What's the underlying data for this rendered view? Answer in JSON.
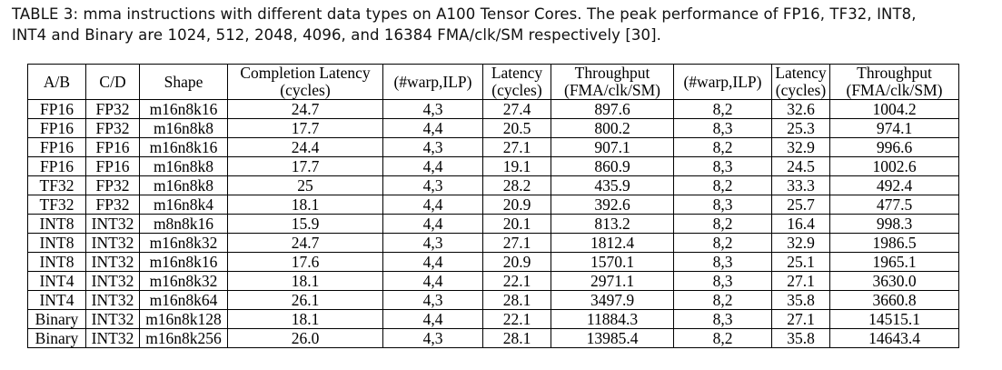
{
  "caption": {
    "line1": "TABLE 3: mma instructions with different data types on A100 Tensor Cores. The peak performance of FP16, TF32, INT8,",
    "line2": "INT4 and Binary are 1024, 512, 2048, 4096, and 16384 FMA/clk/SM respectively [30]."
  },
  "table": {
    "headers": {
      "ab": "A/B",
      "cd": "C/D",
      "shape": "Shape",
      "completion_latency_1": "Completion Latency",
      "completion_latency_2": "(cycles)",
      "warp_ilp_a": "(#warp,ILP)",
      "latency_a_1": "Latency",
      "latency_a_2": "(cycles)",
      "throughput_a_1": "Throughput",
      "throughput_a_2": "(FMA/clk/SM)",
      "warp_ilp_b": "(#warp,ILP)",
      "latency_b_1": "Latency",
      "latency_b_2": "(cycles)",
      "throughput_b_1": "Throughput",
      "throughput_b_2": "(FMA/clk/SM)"
    },
    "rows": [
      [
        "FP16",
        "FP32",
        "m16n8k16",
        "24.7",
        "4,3",
        "27.4",
        "897.6",
        "8,2",
        "32.6",
        "1004.2"
      ],
      [
        "FP16",
        "FP32",
        "m16n8k8",
        "17.7",
        "4,4",
        "20.5",
        "800.2",
        "8,3",
        "25.3",
        "974.1"
      ],
      [
        "FP16",
        "FP16",
        "m16n8k16",
        "24.4",
        "4,3",
        "27.1",
        "907.1",
        "8,2",
        "32.9",
        "996.6"
      ],
      [
        "FP16",
        "FP16",
        "m16n8k8",
        "17.7",
        "4,4",
        "19.1",
        "860.9",
        "8,3",
        "24.5",
        "1002.6"
      ],
      [
        "TF32",
        "FP32",
        "m16n8k8",
        "25",
        "4,3",
        "28.2",
        "435.9",
        "8,2",
        "33.3",
        "492.4"
      ],
      [
        "TF32",
        "FP32",
        "m16n8k4",
        "18.1",
        "4,4",
        "20.9",
        "392.6",
        "8,3",
        "25.7",
        "477.5"
      ],
      [
        "INT8",
        "INT32",
        "m8n8k16",
        "15.9",
        "4,4",
        "20.1",
        "813.2",
        "8,2",
        "16.4",
        "998.3"
      ],
      [
        "INT8",
        "INT32",
        "m16n8k32",
        "24.7",
        "4,3",
        "27.1",
        "1812.4",
        "8,2",
        "32.9",
        "1986.5"
      ],
      [
        "INT8",
        "INT32",
        "m16n8k16",
        "17.6",
        "4,4",
        "20.9",
        "1570.1",
        "8,3",
        "25.1",
        "1965.1"
      ],
      [
        "INT4",
        "INT32",
        "m16n8k32",
        "18.1",
        "4,4",
        "22.1",
        "2971.1",
        "8,3",
        "27.1",
        "3630.0"
      ],
      [
        "INT4",
        "INT32",
        "m16n8k64",
        "26.1",
        "4,3",
        "28.1",
        "3497.9",
        "8,2",
        "35.8",
        "3660.8"
      ],
      [
        "Binary",
        "INT32",
        "m16n8k128",
        "18.1",
        "4,4",
        "22.1",
        "11884.3",
        "8,3",
        "27.1",
        "14515.1"
      ],
      [
        "Binary",
        "INT32",
        "m16n8k256",
        "26.0",
        "4,3",
        "28.1",
        "13985.4",
        "8,2",
        "35.8",
        "14643.4"
      ]
    ]
  }
}
